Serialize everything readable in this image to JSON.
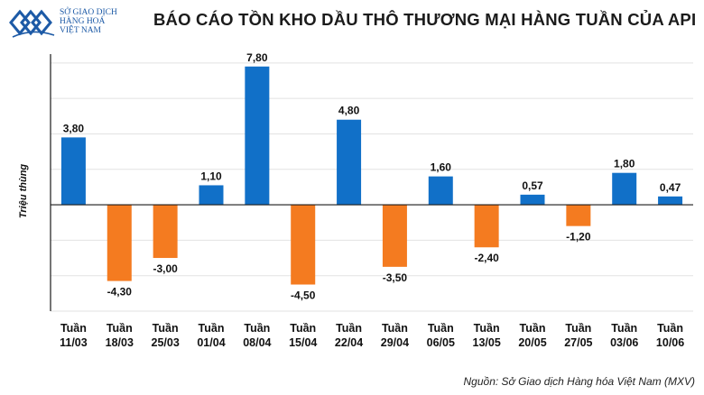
{
  "logo": {
    "line1": "SỞ GIAO DỊCH",
    "line2": "HÀNG HOÁ",
    "line3": "VIỆT NAM"
  },
  "chart_data": {
    "type": "bar",
    "title": "BÁO CÁO TỒN KHO DẦU THÔ THƯƠNG MẠI HÀNG TUẦN CỦA API",
    "xlabel": "",
    "ylabel": "Triệu thùng",
    "ylim": [
      -6,
      8.5
    ],
    "grid": true,
    "categories": [
      {
        "line1": "Tuần",
        "line2": "11/03"
      },
      {
        "line1": "Tuần",
        "line2": "18/03"
      },
      {
        "line1": "Tuần",
        "line2": "25/03"
      },
      {
        "line1": "Tuần",
        "line2": "01/04"
      },
      {
        "line1": "Tuần",
        "line2": "08/04"
      },
      {
        "line1": "Tuần",
        "line2": "15/04"
      },
      {
        "line1": "Tuần",
        "line2": "22/04"
      },
      {
        "line1": "Tuần",
        "line2": "29/04"
      },
      {
        "line1": "Tuần",
        "line2": "06/05"
      },
      {
        "line1": "Tuần",
        "line2": "13/05"
      },
      {
        "line1": "Tuần",
        "line2": "20/05"
      },
      {
        "line1": "Tuần",
        "line2": "27/05"
      },
      {
        "line1": "Tuần",
        "line2": "03/06"
      },
      {
        "line1": "Tuần",
        "line2": "10/06"
      }
    ],
    "values": [
      3.8,
      -4.3,
      -3.0,
      1.1,
      7.8,
      -4.5,
      4.8,
      -3.5,
      1.6,
      -2.4,
      0.57,
      -1.2,
      1.8,
      0.47
    ],
    "labels": [
      "3,80",
      "-4,30",
      "-3,00",
      "1,10",
      "7,80",
      "-4,50",
      "4,80",
      "-3,50",
      "1,60",
      "-2,40",
      "0,57",
      "-1,20",
      "1,80",
      "0,47"
    ],
    "colors": {
      "positive": "#1170c8",
      "negative": "#f47b20",
      "axis": "#1a1a1a",
      "grid": "#e2e2e2"
    }
  },
  "source": "Nguồn: Sở Giao dịch Hàng hóa Việt Nam (MXV)"
}
